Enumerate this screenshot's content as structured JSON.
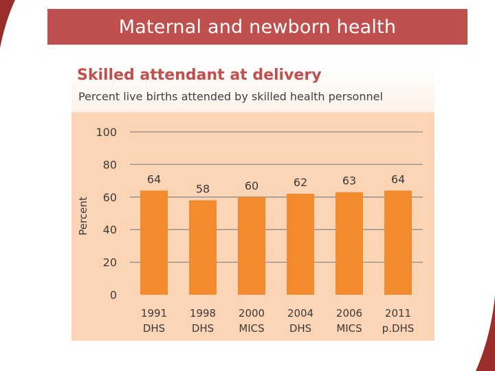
{
  "header": {
    "title": "Maternal and newborn health"
  },
  "colors": {
    "header_bg": "#c0504d",
    "bar": "#f28a2e",
    "panel_bg": "#fbd5b5",
    "title": "#c0504d",
    "gridline": "#8c8c8c"
  },
  "chart_data": {
    "type": "bar",
    "title": "Skilled attendant at delivery",
    "subtitle": "Percent live births attended by skilled health personnel",
    "ylabel": "Percent",
    "xlabel": "",
    "ylim": [
      0,
      100
    ],
    "yticks": [
      0,
      20,
      40,
      60,
      80,
      100
    ],
    "grid": true,
    "categories": [
      [
        "1991",
        "DHS"
      ],
      [
        "1998",
        "DHS"
      ],
      [
        "2000",
        "MICS"
      ],
      [
        "2004",
        "DHS"
      ],
      [
        "2006",
        "MICS"
      ],
      [
        "2011",
        "p.DHS"
      ]
    ],
    "values": [
      64,
      58,
      60,
      62,
      63,
      64
    ]
  }
}
